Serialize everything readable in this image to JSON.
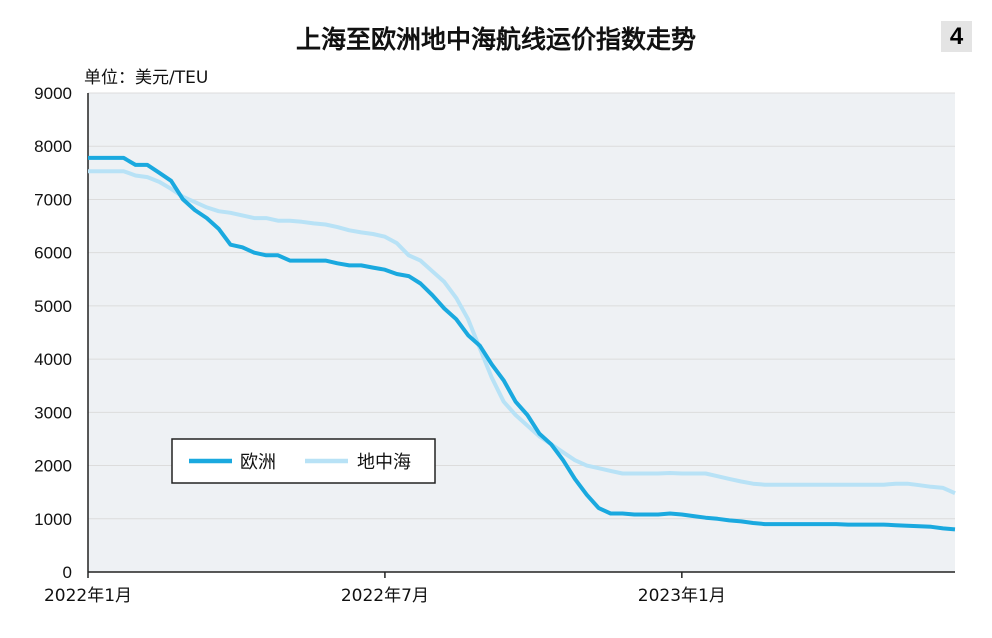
{
  "page": {
    "title": "上海至欧洲地中海航线运价指数走势",
    "badge": "4",
    "unit": "单位：美元/TEU"
  },
  "legend": {
    "europe": "欧洲",
    "med": "地中海"
  },
  "colors": {
    "europe": "#1aa9df",
    "med": "#b8e2f6",
    "grid": "#dcdcdc",
    "axis": "#222222",
    "plot_bg": "#eef1f4"
  },
  "chart_data": {
    "type": "line",
    "title": "上海至欧洲地中海航线运价指数走势",
    "ylabel": "单位：美元/TEU",
    "xlabel": "",
    "ylim": [
      0,
      9000
    ],
    "yticks": [
      0,
      1000,
      2000,
      3000,
      4000,
      5000,
      6000,
      7000,
      8000,
      9000
    ],
    "xlim": [
      0,
      73
    ],
    "xticks": [
      {
        "x": 0,
        "label": "2022年1月"
      },
      {
        "x": 25,
        "label": "2022年7月"
      },
      {
        "x": 50,
        "label": "2023年1月"
      }
    ],
    "x_unit": "weeks since 2022-01-01",
    "series": [
      {
        "name": "欧洲",
        "key": "europe",
        "x": [
          0,
          3,
          4,
          5,
          6,
          7,
          8,
          9,
          10,
          11,
          12,
          13,
          14,
          15,
          16,
          17,
          18,
          19,
          20,
          21,
          22,
          23,
          24,
          25,
          26,
          27,
          28,
          29,
          30,
          31,
          32,
          33,
          34,
          35,
          36,
          37,
          38,
          39,
          40,
          41,
          42,
          43,
          44,
          45,
          46,
          47,
          48,
          49,
          50,
          51,
          52,
          53,
          54,
          55,
          56,
          57,
          58,
          59,
          60,
          61,
          62,
          63,
          64,
          65,
          66,
          67,
          68,
          69,
          70,
          71,
          72,
          73
        ],
        "values": [
          7780,
          7780,
          7650,
          7650,
          7500,
          7350,
          7000,
          6800,
          6650,
          6450,
          6150,
          6100,
          6000,
          5950,
          5950,
          5850,
          5850,
          5850,
          5850,
          5800,
          5760,
          5760,
          5720,
          5680,
          5600,
          5560,
          5420,
          5200,
          4950,
          4750,
          4450,
          4250,
          3900,
          3600,
          3200,
          2950,
          2600,
          2400,
          2100,
          1750,
          1450,
          1200,
          1100,
          1100,
          1080,
          1080,
          1080,
          1100,
          1080,
          1050,
          1020,
          1000,
          970,
          950,
          920,
          900,
          900,
          900,
          900,
          900,
          900,
          900,
          890,
          890,
          890,
          890,
          880,
          870,
          860,
          850,
          820,
          800
        ]
      },
      {
        "name": "地中海",
        "key": "med",
        "x": [
          0,
          3,
          4,
          5,
          6,
          7,
          8,
          9,
          10,
          11,
          12,
          13,
          14,
          15,
          16,
          17,
          18,
          19,
          20,
          21,
          22,
          23,
          24,
          25,
          26,
          27,
          28,
          29,
          30,
          31,
          32,
          33,
          34,
          35,
          36,
          37,
          38,
          39,
          40,
          41,
          42,
          43,
          44,
          45,
          46,
          47,
          48,
          49,
          50,
          51,
          52,
          53,
          54,
          55,
          56,
          57,
          58,
          59,
          60,
          61,
          62,
          63,
          64,
          65,
          66,
          67,
          68,
          69,
          70,
          71,
          72,
          73
        ],
        "values": [
          7530,
          7530,
          7450,
          7420,
          7330,
          7200,
          7050,
          6950,
          6850,
          6780,
          6750,
          6700,
          6650,
          6650,
          6600,
          6600,
          6580,
          6550,
          6530,
          6480,
          6420,
          6380,
          6350,
          6300,
          6180,
          5950,
          5850,
          5650,
          5450,
          5150,
          4750,
          4200,
          3650,
          3200,
          2950,
          2750,
          2550,
          2400,
          2250,
          2100,
          2000,
          1950,
          1900,
          1850,
          1850,
          1850,
          1850,
          1860,
          1850,
          1850,
          1850,
          1800,
          1750,
          1700,
          1660,
          1640,
          1640,
          1640,
          1640,
          1640,
          1640,
          1640,
          1640,
          1640,
          1640,
          1640,
          1660,
          1660,
          1630,
          1600,
          1580,
          1480
        ]
      }
    ]
  }
}
